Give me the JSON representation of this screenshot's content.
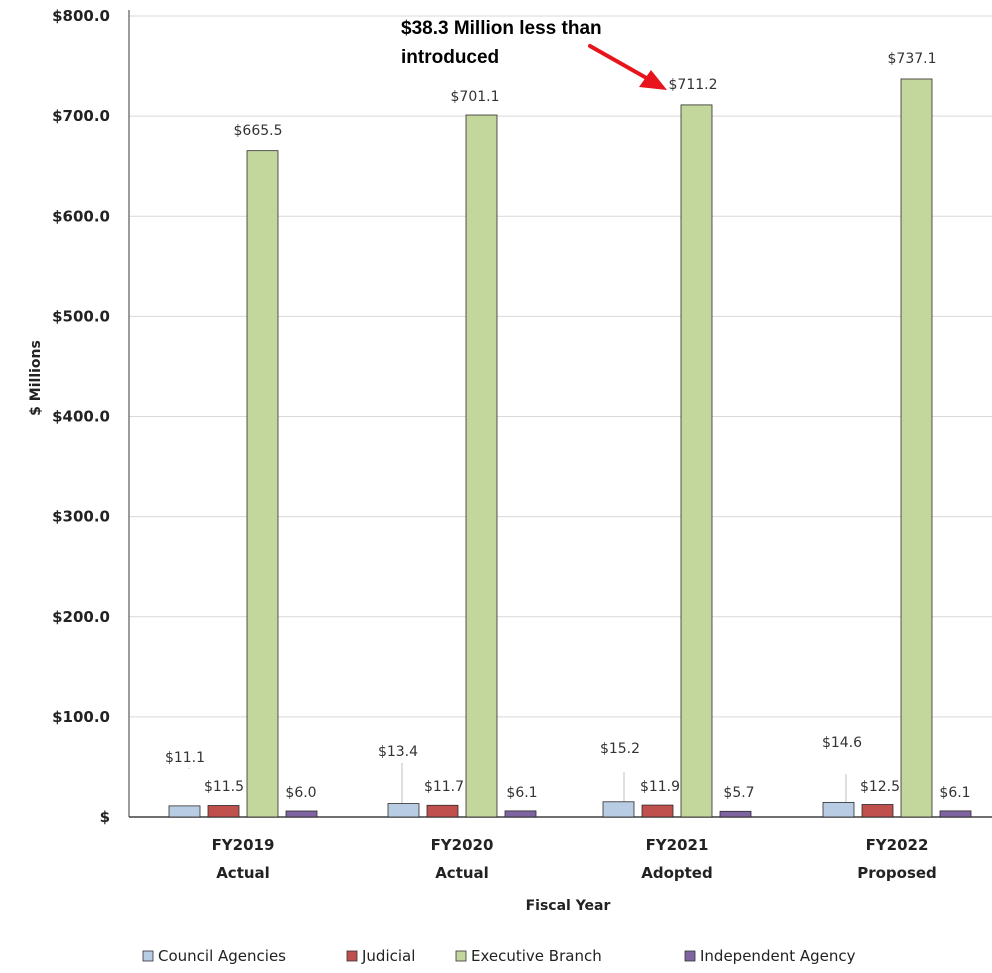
{
  "chart_data": {
    "type": "bar",
    "categories": [
      {
        "line1": "FY2019",
        "line2": "Actual"
      },
      {
        "line1": "FY2020",
        "line2": "Actual"
      },
      {
        "line1": "FY2021",
        "line2": "Adopted"
      },
      {
        "line1": "FY2022",
        "line2": "Proposed"
      }
    ],
    "series": [
      {
        "name": "Council Agencies",
        "color": "#b8cce4",
        "values": [
          11.1,
          13.4,
          15.2,
          14.6
        ],
        "labels": [
          "$11.1",
          "$13.4",
          "$15.2",
          "$14.6"
        ]
      },
      {
        "name": "Judicial",
        "color": "#c0504d",
        "values": [
          11.5,
          11.7,
          11.9,
          12.5
        ],
        "labels": [
          "$11.5",
          "$11.7",
          "$11.9",
          "$12.5"
        ]
      },
      {
        "name": "Executive Branch",
        "color": "#c3d69b",
        "values": [
          665.5,
          701.1,
          711.2,
          737.1
        ],
        "labels": [
          "$665.5",
          "$701.1",
          "$711.2",
          "$737.1"
        ]
      },
      {
        "name": "Independent Agency",
        "color": "#8064a2",
        "values": [
          6.0,
          6.1,
          5.7,
          6.1
        ],
        "labels": [
          "$6.0",
          "$6.1",
          "$5.7",
          "$6.1"
        ]
      }
    ],
    "ylim": [
      0,
      800
    ],
    "yticks": [
      {
        "value": 0,
        "label": "$"
      },
      {
        "value": 100,
        "label": "$100.0"
      },
      {
        "value": 200,
        "label": "$200.0"
      },
      {
        "value": 300,
        "label": "$300.0"
      },
      {
        "value": 400,
        "label": "$400.0"
      },
      {
        "value": 500,
        "label": "$500.0"
      },
      {
        "value": 600,
        "label": "$600.0"
      },
      {
        "value": 700,
        "label": "$700.0"
      },
      {
        "value": 800,
        "label": "$800.0"
      }
    ],
    "xlabel": "Fiscal Year",
    "ylabel": "$ Millions",
    "grid": "horizontal",
    "legend_position": "bottom",
    "annotation": {
      "lines": [
        "$38.3 Million less than",
        "introduced"
      ],
      "arrow_color": "#e8141b",
      "target_category": 2,
      "target_series": 2
    }
  }
}
